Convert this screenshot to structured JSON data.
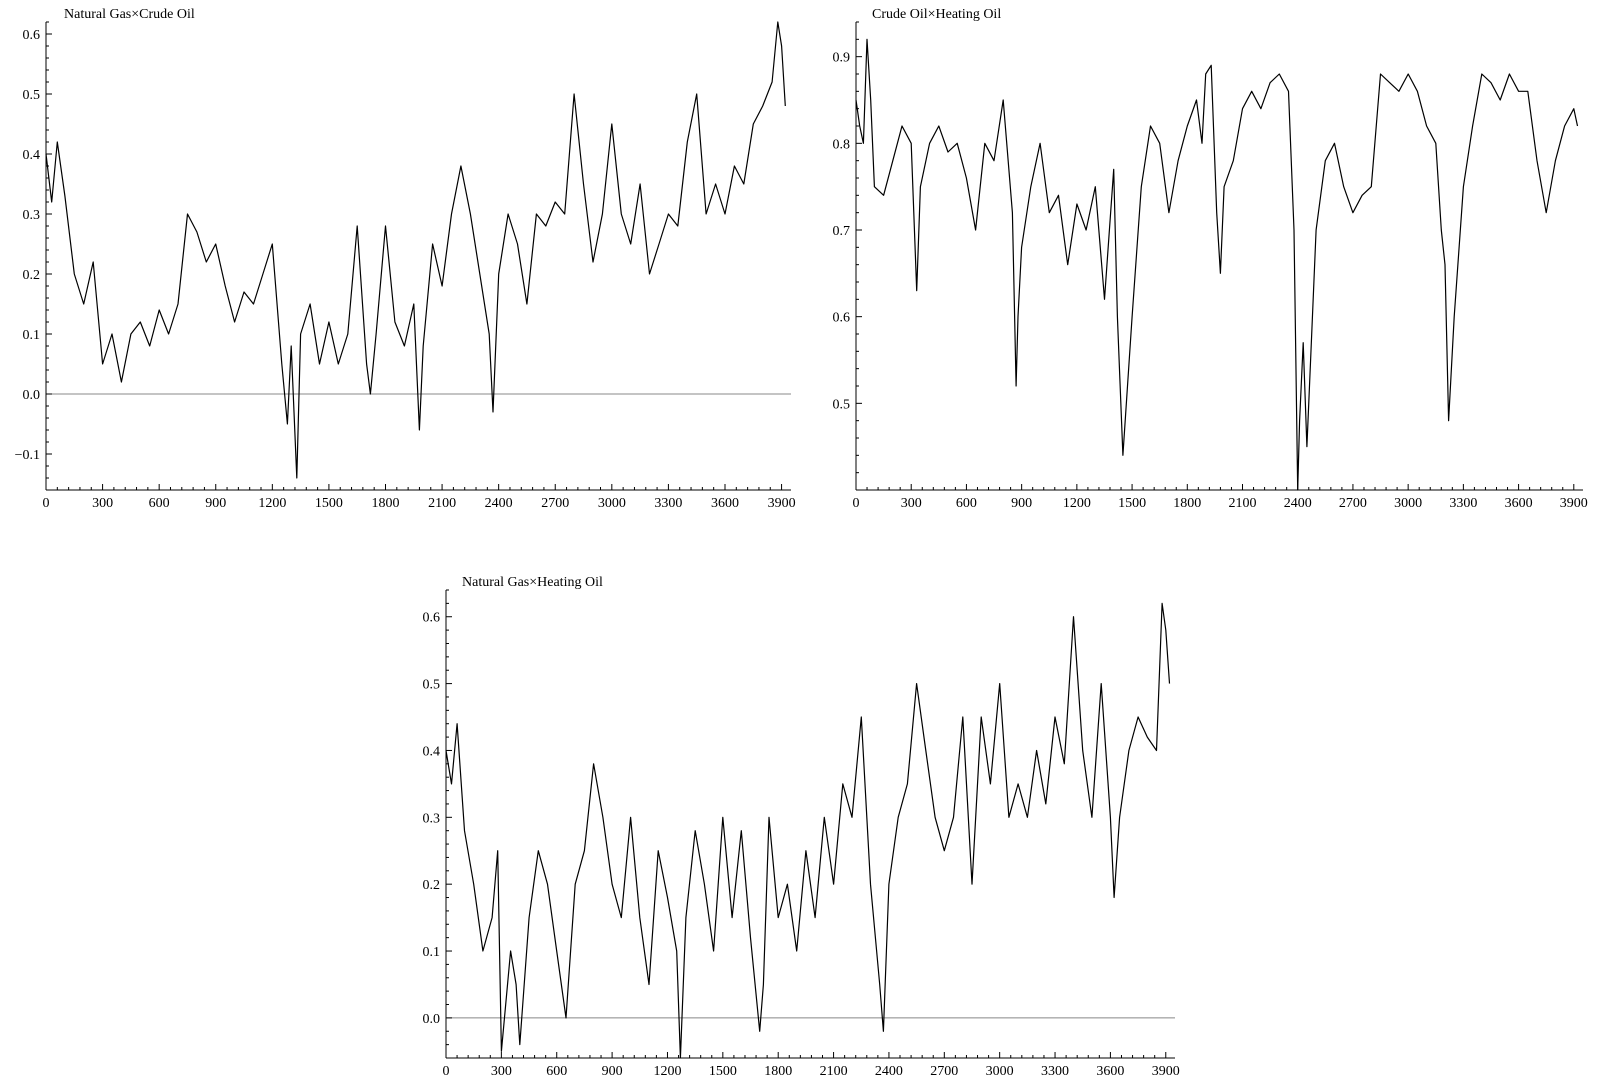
{
  "chart_data": [
    {
      "type": "line",
      "title": "Natural Gas×Crude Oil",
      "xlabel": "",
      "ylabel": "",
      "xlim": [
        0,
        3950
      ],
      "ylim": [
        -0.16,
        0.62
      ],
      "x_ticks": [
        0,
        300,
        600,
        900,
        1200,
        1500,
        1800,
        2100,
        2400,
        2700,
        3000,
        3300,
        3600,
        3900
      ],
      "x_tick_labels": [
        "0",
        "300",
        "600",
        "900",
        "1200",
        "1500",
        "1800",
        "2100",
        "2400",
        "2700",
        "3000",
        "3300",
        "3600",
        "3900"
      ],
      "y_ticks": [
        -0.1,
        0.0,
        0.1,
        0.2,
        0.3,
        0.4,
        0.5,
        0.6
      ],
      "y_tick_labels": [
        "−0.1",
        "0.0",
        "0.1",
        "0.2",
        "0.3",
        "0.4",
        "0.5",
        "0.6"
      ],
      "reference_line": 0.0,
      "grid": false,
      "series": [
        {
          "x": [
            0,
            30,
            60,
            100,
            150,
            200,
            250,
            300,
            350,
            400,
            450,
            500,
            550,
            600,
            650,
            700,
            750,
            800,
            850,
            900,
            950,
            1000,
            1050,
            1100,
            1150,
            1200,
            1250,
            1280,
            1300,
            1330,
            1350,
            1400,
            1450,
            1500,
            1550,
            1600,
            1650,
            1700,
            1720,
            1750,
            1800,
            1850,
            1900,
            1950,
            1980,
            2000,
            2050,
            2100,
            2150,
            2200,
            2250,
            2300,
            2350,
            2370,
            2400,
            2450,
            2500,
            2550,
            2600,
            2650,
            2700,
            2750,
            2800,
            2850,
            2900,
            2950,
            3000,
            3050,
            3100,
            3150,
            3200,
            3250,
            3300,
            3350,
            3400,
            3450,
            3500,
            3550,
            3600,
            3650,
            3700,
            3750,
            3800,
            3850,
            3880,
            3900,
            3920
          ],
          "y": [
            0.4,
            0.32,
            0.42,
            0.33,
            0.2,
            0.15,
            0.22,
            0.05,
            0.1,
            0.02,
            0.1,
            0.12,
            0.08,
            0.14,
            0.1,
            0.15,
            0.3,
            0.27,
            0.22,
            0.25,
            0.18,
            0.12,
            0.17,
            0.15,
            0.2,
            0.25,
            0.05,
            -0.05,
            0.08,
            -0.14,
            0.1,
            0.15,
            0.05,
            0.12,
            0.05,
            0.1,
            0.28,
            0.05,
            0.0,
            0.1,
            0.28,
            0.12,
            0.08,
            0.15,
            -0.06,
            0.08,
            0.25,
            0.18,
            0.3,
            0.38,
            0.3,
            0.2,
            0.1,
            -0.03,
            0.2,
            0.3,
            0.25,
            0.15,
            0.3,
            0.28,
            0.32,
            0.3,
            0.5,
            0.35,
            0.22,
            0.3,
            0.45,
            0.3,
            0.25,
            0.35,
            0.2,
            0.25,
            0.3,
            0.28,
            0.42,
            0.5,
            0.3,
            0.35,
            0.3,
            0.38,
            0.35,
            0.45,
            0.48,
            0.52,
            0.62,
            0.58,
            0.48
          ]
        }
      ]
    },
    {
      "type": "line",
      "title": "Crude Oil×Heating Oil",
      "xlabel": "",
      "ylabel": "",
      "xlim": [
        0,
        3950
      ],
      "ylim": [
        0.4,
        0.94
      ],
      "x_ticks": [
        0,
        300,
        600,
        900,
        1200,
        1500,
        1800,
        2100,
        2400,
        2700,
        3000,
        3300,
        3600,
        3900
      ],
      "x_tick_labels": [
        "0",
        "300",
        "600",
        "900",
        "1200",
        "1500",
        "1800",
        "2100",
        "2400",
        "2700",
        "3000",
        "3300",
        "3600",
        "3900"
      ],
      "y_ticks": [
        0.5,
        0.6,
        0.7,
        0.8,
        0.9
      ],
      "y_tick_labels": [
        "0.5",
        "0.6",
        "0.7",
        "0.8",
        "0.9"
      ],
      "grid": false,
      "series": [
        {
          "x": [
            0,
            20,
            40,
            60,
            80,
            100,
            150,
            200,
            250,
            300,
            330,
            350,
            400,
            450,
            500,
            550,
            600,
            650,
            700,
            750,
            800,
            850,
            870,
            880,
            900,
            950,
            1000,
            1050,
            1100,
            1150,
            1200,
            1250,
            1300,
            1350,
            1400,
            1420,
            1450,
            1500,
            1550,
            1600,
            1650,
            1700,
            1750,
            1800,
            1850,
            1880,
            1900,
            1930,
            1960,
            1980,
            2000,
            2050,
            2100,
            2150,
            2200,
            2250,
            2300,
            2350,
            2380,
            2400,
            2410,
            2430,
            2450,
            2470,
            2500,
            2550,
            2600,
            2650,
            2700,
            2750,
            2800,
            2850,
            2900,
            2950,
            3000,
            3050,
            3100,
            3150,
            3180,
            3200,
            3220,
            3250,
            3300,
            3350,
            3400,
            3450,
            3500,
            3550,
            3600,
            3650,
            3700,
            3750,
            3800,
            3850,
            3900,
            3920
          ],
          "y": [
            0.85,
            0.82,
            0.8,
            0.92,
            0.85,
            0.75,
            0.74,
            0.78,
            0.82,
            0.8,
            0.63,
            0.75,
            0.8,
            0.82,
            0.79,
            0.8,
            0.76,
            0.7,
            0.8,
            0.78,
            0.85,
            0.72,
            0.52,
            0.6,
            0.68,
            0.75,
            0.8,
            0.72,
            0.74,
            0.66,
            0.73,
            0.7,
            0.75,
            0.62,
            0.77,
            0.6,
            0.44,
            0.6,
            0.75,
            0.82,
            0.8,
            0.72,
            0.78,
            0.82,
            0.85,
            0.8,
            0.88,
            0.89,
            0.72,
            0.65,
            0.75,
            0.78,
            0.84,
            0.86,
            0.84,
            0.87,
            0.88,
            0.86,
            0.7,
            0.4,
            0.48,
            0.57,
            0.45,
            0.55,
            0.7,
            0.78,
            0.8,
            0.75,
            0.72,
            0.74,
            0.75,
            0.88,
            0.87,
            0.86,
            0.88,
            0.86,
            0.82,
            0.8,
            0.7,
            0.66,
            0.48,
            0.6,
            0.75,
            0.82,
            0.88,
            0.87,
            0.85,
            0.88,
            0.86,
            0.86,
            0.78,
            0.72,
            0.78,
            0.82,
            0.84,
            0.82
          ]
        }
      ]
    },
    {
      "type": "line",
      "title": "Natural Gas×Heating Oil",
      "xlabel": "",
      "ylabel": "",
      "xlim": [
        0,
        3950
      ],
      "ylim": [
        -0.06,
        0.64
      ],
      "x_ticks": [
        0,
        300,
        600,
        900,
        1200,
        1500,
        1800,
        2100,
        2400,
        2700,
        3000,
        3300,
        3600,
        3900
      ],
      "x_tick_labels": [
        "0",
        "300",
        "600",
        "900",
        "1200",
        "1500",
        "1800",
        "2100",
        "2400",
        "2700",
        "3000",
        "3300",
        "3600",
        "3900"
      ],
      "y_ticks": [
        0.0,
        0.1,
        0.2,
        0.3,
        0.4,
        0.5,
        0.6
      ],
      "y_tick_labels": [
        "0.0",
        "0.1",
        "0.2",
        "0.3",
        "0.4",
        "0.5",
        "0.6"
      ],
      "reference_line": 0.0,
      "grid": false,
      "series": [
        {
          "x": [
            0,
            30,
            60,
            100,
            150,
            200,
            250,
            280,
            300,
            350,
            380,
            400,
            450,
            500,
            550,
            600,
            650,
            700,
            750,
            800,
            850,
            900,
            950,
            1000,
            1050,
            1100,
            1150,
            1200,
            1250,
            1270,
            1300,
            1350,
            1400,
            1450,
            1500,
            1550,
            1600,
            1650,
            1700,
            1720,
            1750,
            1800,
            1850,
            1900,
            1950,
            2000,
            2050,
            2100,
            2150,
            2200,
            2250,
            2300,
            2350,
            2370,
            2400,
            2450,
            2500,
            2550,
            2600,
            2650,
            2700,
            2750,
            2800,
            2850,
            2900,
            2950,
            3000,
            3050,
            3100,
            3150,
            3200,
            3250,
            3300,
            3350,
            3400,
            3450,
            3500,
            3550,
            3600,
            3620,
            3650,
            3700,
            3750,
            3800,
            3850,
            3880,
            3900,
            3920
          ],
          "y": [
            0.4,
            0.35,
            0.44,
            0.28,
            0.2,
            0.1,
            0.15,
            0.25,
            -0.05,
            0.1,
            0.05,
            -0.04,
            0.15,
            0.25,
            0.2,
            0.1,
            0.0,
            0.2,
            0.25,
            0.38,
            0.3,
            0.2,
            0.15,
            0.3,
            0.15,
            0.05,
            0.25,
            0.18,
            0.1,
            -0.06,
            0.15,
            0.28,
            0.2,
            0.1,
            0.3,
            0.15,
            0.28,
            0.12,
            -0.02,
            0.05,
            0.3,
            0.15,
            0.2,
            0.1,
            0.25,
            0.15,
            0.3,
            0.2,
            0.35,
            0.3,
            0.45,
            0.2,
            0.05,
            -0.02,
            0.2,
            0.3,
            0.35,
            0.5,
            0.4,
            0.3,
            0.25,
            0.3,
            0.45,
            0.2,
            0.45,
            0.35,
            0.5,
            0.3,
            0.35,
            0.3,
            0.4,
            0.32,
            0.45,
            0.38,
            0.6,
            0.4,
            0.3,
            0.5,
            0.3,
            0.18,
            0.3,
            0.4,
            0.45,
            0.42,
            0.4,
            0.62,
            0.58,
            0.5
          ]
        }
      ]
    }
  ]
}
